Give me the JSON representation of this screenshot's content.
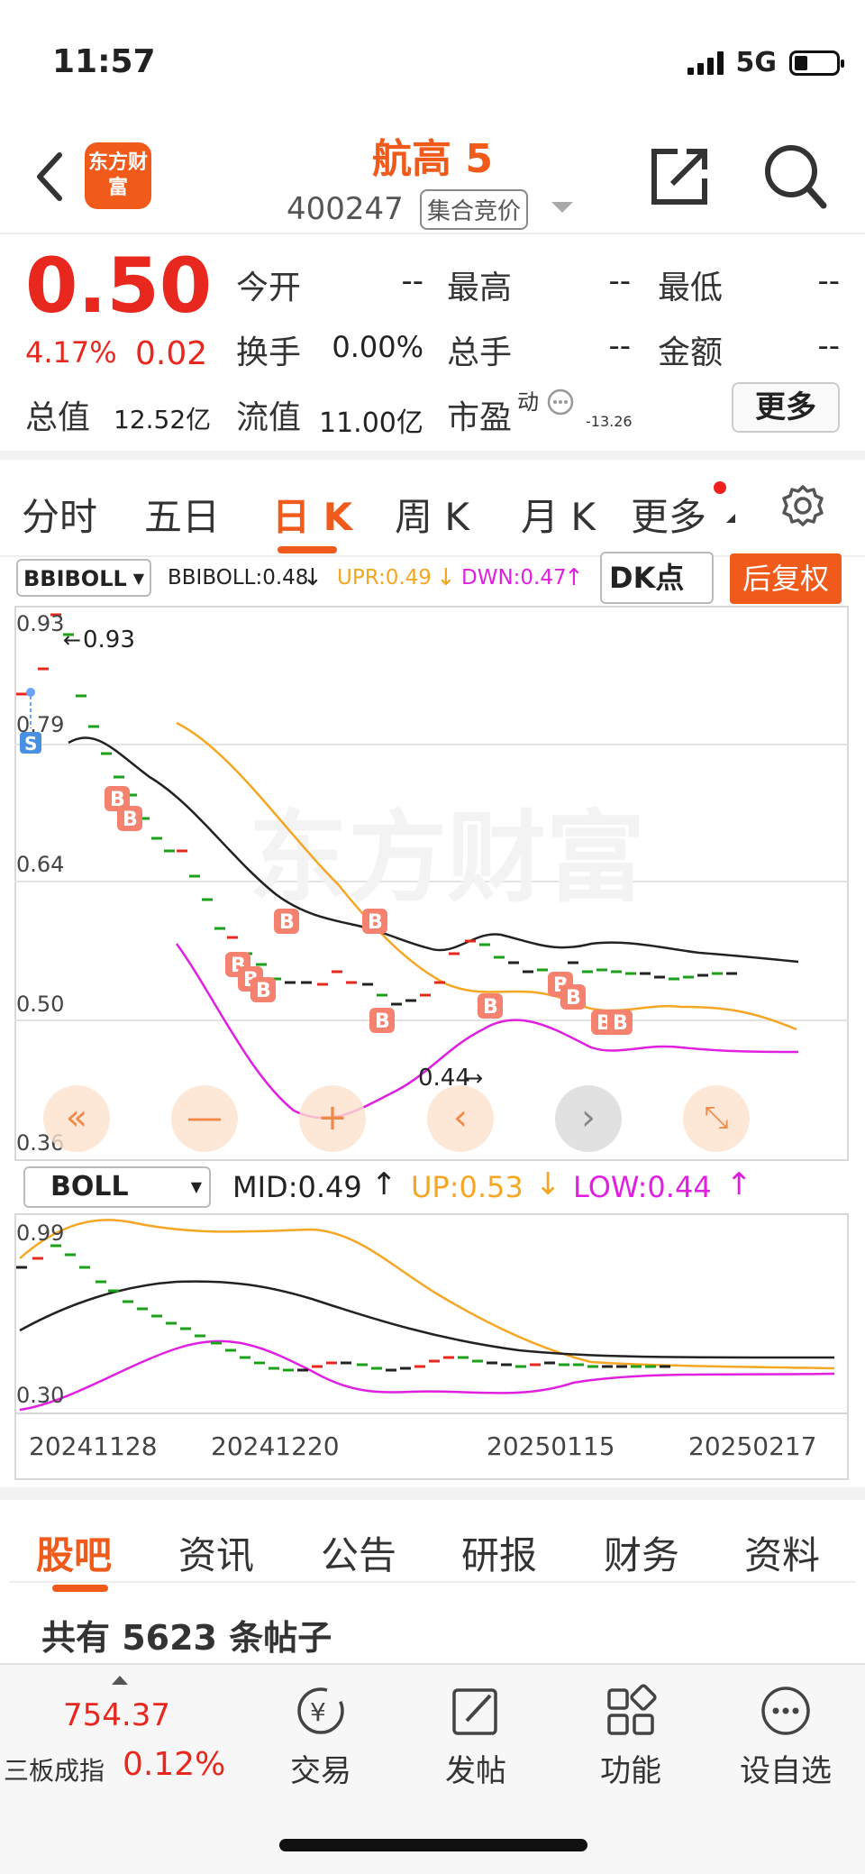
{
  "status": {
    "time": "11:57",
    "network": "5G"
  },
  "nav": {
    "title": "航高 5",
    "code": "400247",
    "tag": "集合竞价",
    "logo": "东方财富"
  },
  "quote": {
    "price": "0.50",
    "pct": "4.17%",
    "change": "0.02",
    "fields": [
      {
        "label": "今开",
        "value": "--"
      },
      {
        "label": "最高",
        "value": "--"
      },
      {
        "label": "最低",
        "value": "--"
      },
      {
        "label": "换手",
        "value": "0.00%"
      },
      {
        "label": "总手",
        "value": "--"
      },
      {
        "label": "金额",
        "value": "--"
      }
    ],
    "total_value_label": "总值",
    "total_value": "12.52亿",
    "float_value_label": "流值",
    "float_value": "11.00亿",
    "pe_label": "市盈",
    "pe_sup": "动",
    "pe_value": "-13.26",
    "more": "更多"
  },
  "tabs": [
    "分时",
    "五日",
    "日 K",
    "周 K",
    "月 K",
    "更多"
  ],
  "main_chart": {
    "indicator": "BBIBOLL",
    "bbiboll": "BBIBOLL:0.48",
    "upr": "UPR:0.49",
    "dwn": "DWN:0.47",
    "dk": "DK点",
    "fq": "后复权",
    "y_labels": [
      "0.93",
      "0.79",
      "0.64",
      "0.50",
      "0.36"
    ],
    "high_mark": "0.93",
    "low_mark": "0.44",
    "watermark": "东方财富",
    "s_marker": "S",
    "b_marker": "B"
  },
  "sub_chart": {
    "indicator": "BOLL",
    "mid": "MID:0.49",
    "up": "UP:0.53",
    "low": "LOW:0.44",
    "y_labels": [
      "0.99",
      "0.30"
    ]
  },
  "x_labels": [
    "20241128",
    "20241220",
    "20250115",
    "20250217"
  ],
  "bottom_tabs": [
    "股吧",
    "资讯",
    "公告",
    "研报",
    "财务",
    "资料"
  ],
  "posts": "共有 5623 条帖子",
  "index": {
    "value": "754.37",
    "name": "三板成指",
    "pct": "0.12%"
  },
  "toolbar": [
    {
      "label": "交易",
      "icon": "trade-icon"
    },
    {
      "label": "发帖",
      "icon": "edit-icon"
    },
    {
      "label": "功能",
      "icon": "grid-icon"
    },
    {
      "label": "设自选",
      "icon": "more-icon"
    }
  ],
  "colors": {
    "accent": "#f05a1a",
    "up": "#e8271e",
    "upper_band": "#f5a623",
    "lower_band": "#e020e0"
  }
}
